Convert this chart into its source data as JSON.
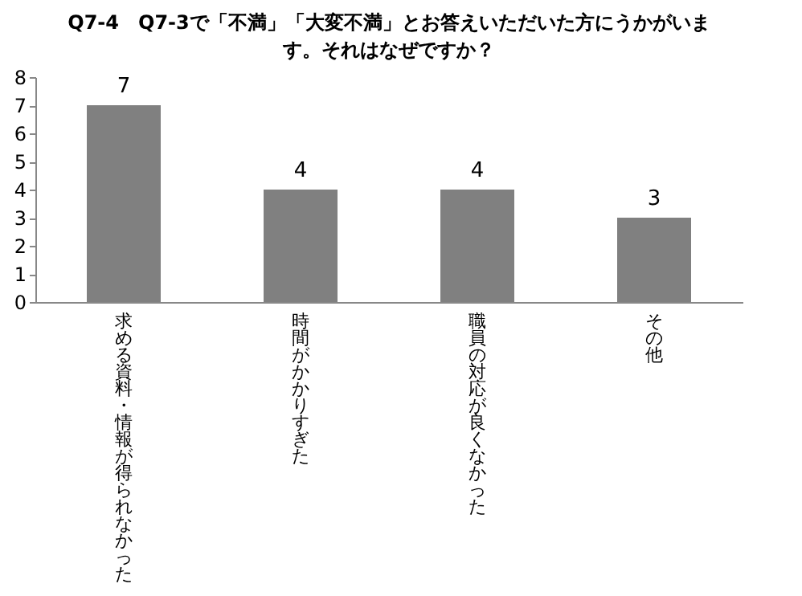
{
  "chart_data": {
    "type": "bar",
    "title": "Q7-4　Q7-3で「不満」「大変不満」とお答えいただいた方にうかがいます。それはなぜですか？",
    "categories": [
      "求める資料・情報が得られなかった",
      "時間がかかりすぎた",
      "職員の対応が良くなかった",
      "その他"
    ],
    "values": [
      7,
      4,
      4,
      3
    ],
    "color": "#808080",
    "ylim": [
      0,
      8
    ],
    "yticks": [
      0,
      1,
      2,
      3,
      4,
      5,
      6,
      7,
      8
    ],
    "grid": false,
    "data_labels": true
  }
}
